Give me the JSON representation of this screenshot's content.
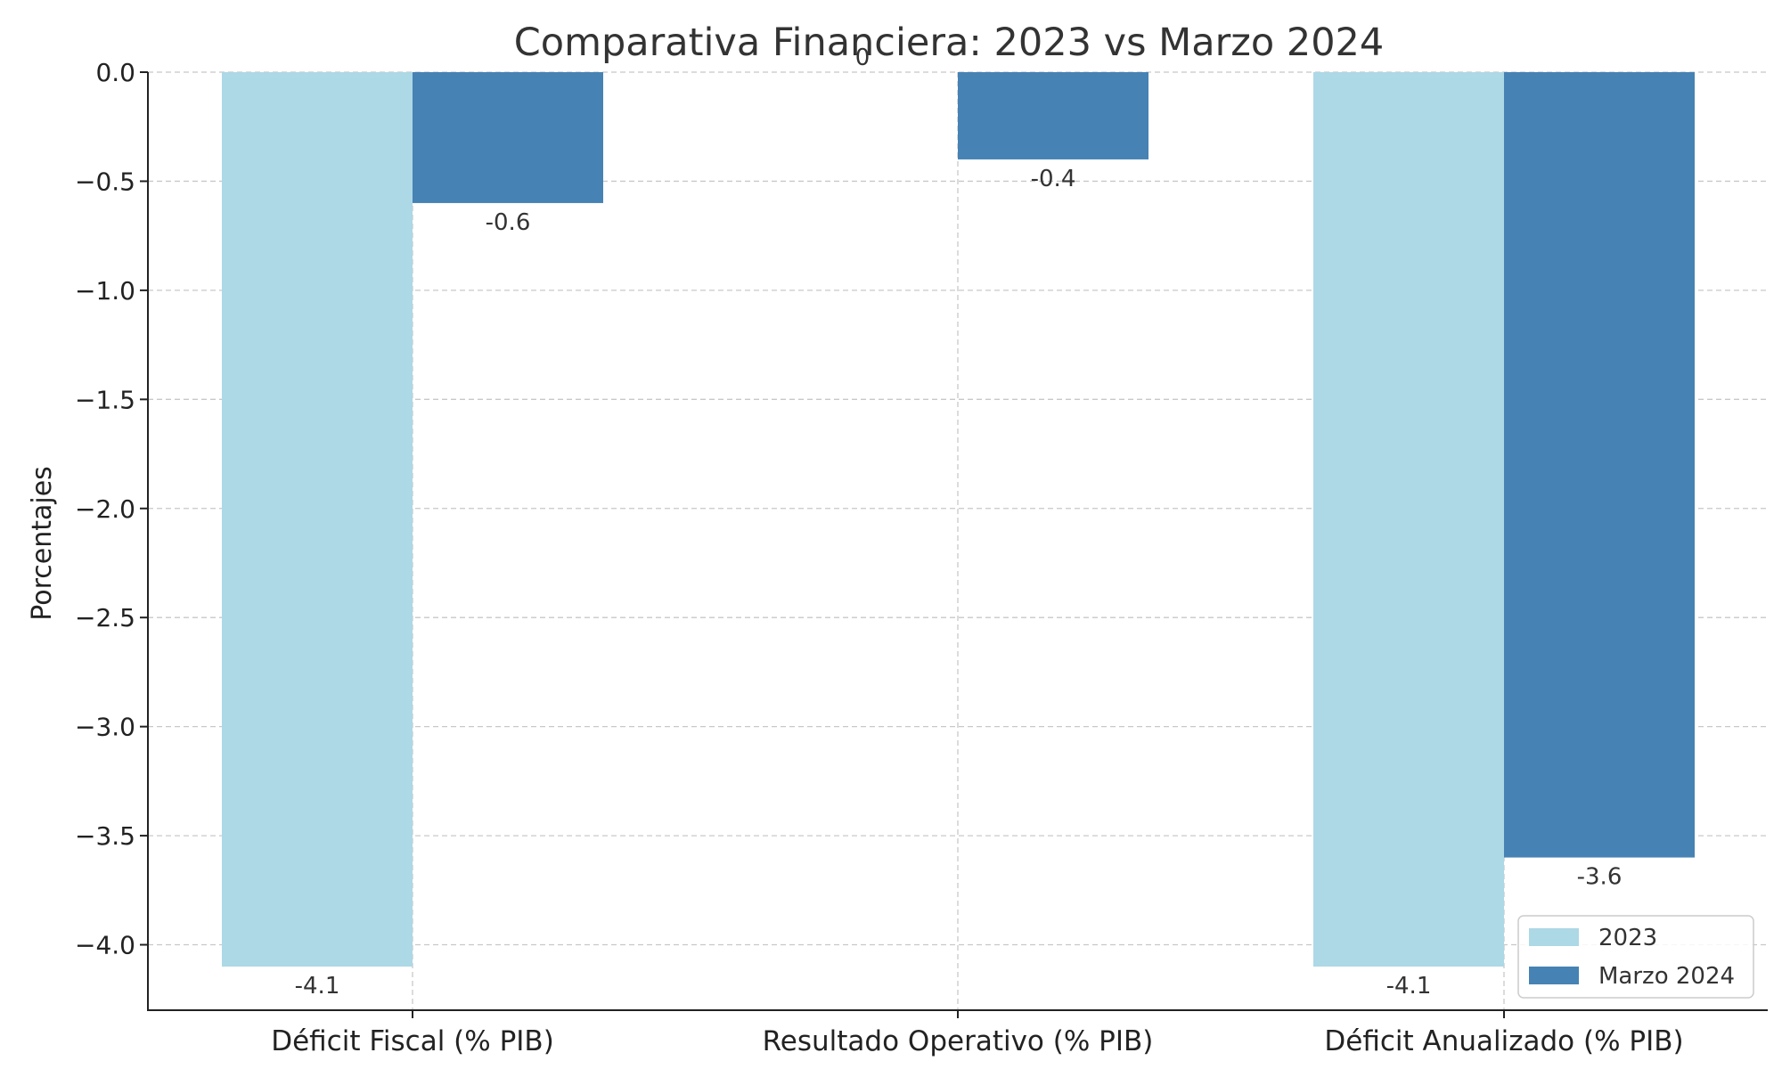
{
  "chart_data": {
    "type": "bar",
    "title": "Comparativa Financiera: 2023 vs Marzo 2024",
    "ylabel": "Porcentajes",
    "xlabel": "",
    "categories": [
      "Déficit Fiscal (% PIB)",
      "Resultado Operativo (% PIB)",
      "Déficit Anualizado (% PIB)"
    ],
    "series": [
      {
        "name": "2023",
        "values": [
          -4.1,
          0,
          -4.1
        ],
        "labels": [
          "-4.1",
          "0",
          "-4.1"
        ],
        "color": "#add8e6"
      },
      {
        "name": "Marzo 2024",
        "values": [
          -0.6,
          -0.4,
          -3.6
        ],
        "labels": [
          "-0.6",
          "-0.4",
          "-3.6"
        ],
        "color": "#4682b4"
      }
    ],
    "ylim": [
      -4.3,
      0.0
    ],
    "yticks": [
      0.0,
      -0.5,
      -1.0,
      -1.5,
      -2.0,
      -2.5,
      -3.0,
      -3.5,
      -4.0
    ],
    "ytick_labels": [
      "0.0",
      "−0.5",
      "−1.0",
      "−1.5",
      "−2.0",
      "−2.5",
      "−3.0",
      "−3.5",
      "−4.0"
    ],
    "grid": true,
    "legend_position": "bottom-right"
  }
}
